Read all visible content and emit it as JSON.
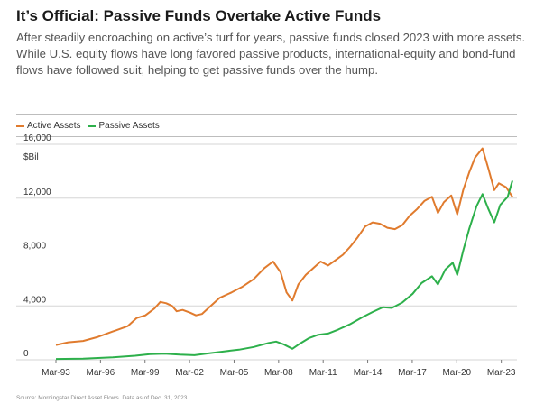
{
  "title": "It’s Official: Passive Funds Overtake Active Funds",
  "subtitle": "After steadily encroaching on active’s turf for years, passive funds closed 2023 with more assets. While U.S. equity flows have long favored passive products, international-equity and bond-fund flows have followed suit, helping to get passive funds over the hump.",
  "source": "Source: Morningstar Direct Asset Flows. Data as of Dec. 31, 2023.",
  "colors": {
    "active": "#e07b2e",
    "passive": "#2db04b"
  },
  "chart_data": {
    "type": "line",
    "ylabel": "$Bil",
    "ylim": [
      0,
      16000
    ],
    "xlim": [
      1993.17,
      2023.92
    ],
    "y_ticks": [
      0,
      4000,
      8000,
      12000,
      16000
    ],
    "y_tick_labels": [
      "0",
      "4,000",
      "8,000",
      "12,000",
      "16,000"
    ],
    "x_ticks": [
      1993.17,
      1996.17,
      1999.17,
      2002.17,
      2005.17,
      2008.17,
      2011.17,
      2014.17,
      2017.17,
      2020.17,
      2023.17
    ],
    "x_tick_labels": [
      "Mar-93",
      "Mar-96",
      "Mar-99",
      "Mar-02",
      "Mar-05",
      "Mar-08",
      "Mar-11",
      "Mar-14",
      "Mar-17",
      "Mar-20",
      "Mar-23"
    ],
    "legend": "top-left",
    "grid": "horizontal",
    "series": [
      {
        "name": "Active Assets",
        "color": "#e07b2e",
        "points": [
          [
            1993.17,
            1100
          ],
          [
            1994.0,
            1300
          ],
          [
            1995.0,
            1400
          ],
          [
            1996.0,
            1700
          ],
          [
            1997.0,
            2100
          ],
          [
            1998.0,
            2500
          ],
          [
            1998.6,
            3100
          ],
          [
            1999.2,
            3300
          ],
          [
            1999.8,
            3800
          ],
          [
            2000.2,
            4300
          ],
          [
            2000.6,
            4200
          ],
          [
            2001.0,
            4000
          ],
          [
            2001.3,
            3600
          ],
          [
            2001.7,
            3700
          ],
          [
            2002.2,
            3500
          ],
          [
            2002.6,
            3300
          ],
          [
            2003.0,
            3400
          ],
          [
            2003.6,
            4000
          ],
          [
            2004.2,
            4600
          ],
          [
            2005.0,
            5000
          ],
          [
            2005.7,
            5400
          ],
          [
            2006.5,
            6000
          ],
          [
            2007.2,
            6800
          ],
          [
            2007.8,
            7300
          ],
          [
            2008.3,
            6500
          ],
          [
            2008.7,
            5000
          ],
          [
            2009.1,
            4400
          ],
          [
            2009.5,
            5600
          ],
          [
            2010.0,
            6300
          ],
          [
            2010.5,
            6800
          ],
          [
            2011.0,
            7300
          ],
          [
            2011.5,
            7000
          ],
          [
            2012.0,
            7400
          ],
          [
            2012.5,
            7800
          ],
          [
            2013.0,
            8400
          ],
          [
            2013.5,
            9100
          ],
          [
            2014.0,
            9900
          ],
          [
            2014.5,
            10200
          ],
          [
            2015.0,
            10100
          ],
          [
            2015.5,
            9800
          ],
          [
            2016.0,
            9700
          ],
          [
            2016.5,
            10000
          ],
          [
            2017.0,
            10700
          ],
          [
            2017.5,
            11200
          ],
          [
            2018.0,
            11800
          ],
          [
            2018.5,
            12100
          ],
          [
            2018.9,
            10900
          ],
          [
            2019.3,
            11700
          ],
          [
            2019.8,
            12200
          ],
          [
            2020.2,
            10800
          ],
          [
            2020.6,
            12600
          ],
          [
            2021.0,
            13900
          ],
          [
            2021.4,
            15000
          ],
          [
            2021.9,
            15700
          ],
          [
            2022.3,
            14200
          ],
          [
            2022.7,
            12600
          ],
          [
            2023.0,
            13100
          ],
          [
            2023.5,
            12800
          ],
          [
            2023.92,
            12100
          ]
        ]
      },
      {
        "name": "Passive Assets",
        "color": "#2db04b",
        "points": [
          [
            1993.17,
            60
          ],
          [
            1995.0,
            90
          ],
          [
            1997.0,
            180
          ],
          [
            1998.5,
            300
          ],
          [
            1999.5,
            420
          ],
          [
            2000.5,
            450
          ],
          [
            2001.5,
            380
          ],
          [
            2002.5,
            340
          ],
          [
            2003.5,
            480
          ],
          [
            2004.5,
            620
          ],
          [
            2005.5,
            750
          ],
          [
            2006.5,
            950
          ],
          [
            2007.5,
            1250
          ],
          [
            2008.0,
            1350
          ],
          [
            2008.5,
            1150
          ],
          [
            2009.1,
            820
          ],
          [
            2009.6,
            1200
          ],
          [
            2010.2,
            1600
          ],
          [
            2010.8,
            1850
          ],
          [
            2011.5,
            1950
          ],
          [
            2012.2,
            2250
          ],
          [
            2013.0,
            2650
          ],
          [
            2013.8,
            3150
          ],
          [
            2014.5,
            3550
          ],
          [
            2015.2,
            3900
          ],
          [
            2015.8,
            3850
          ],
          [
            2016.5,
            4250
          ],
          [
            2017.2,
            4900
          ],
          [
            2017.8,
            5700
          ],
          [
            2018.5,
            6200
          ],
          [
            2018.9,
            5600
          ],
          [
            2019.4,
            6700
          ],
          [
            2019.9,
            7200
          ],
          [
            2020.2,
            6300
          ],
          [
            2020.6,
            8100
          ],
          [
            2021.0,
            9700
          ],
          [
            2021.5,
            11400
          ],
          [
            2021.9,
            12300
          ],
          [
            2022.3,
            11200
          ],
          [
            2022.7,
            10200
          ],
          [
            2023.1,
            11500
          ],
          [
            2023.6,
            12100
          ],
          [
            2023.92,
            13300
          ]
        ]
      }
    ]
  }
}
